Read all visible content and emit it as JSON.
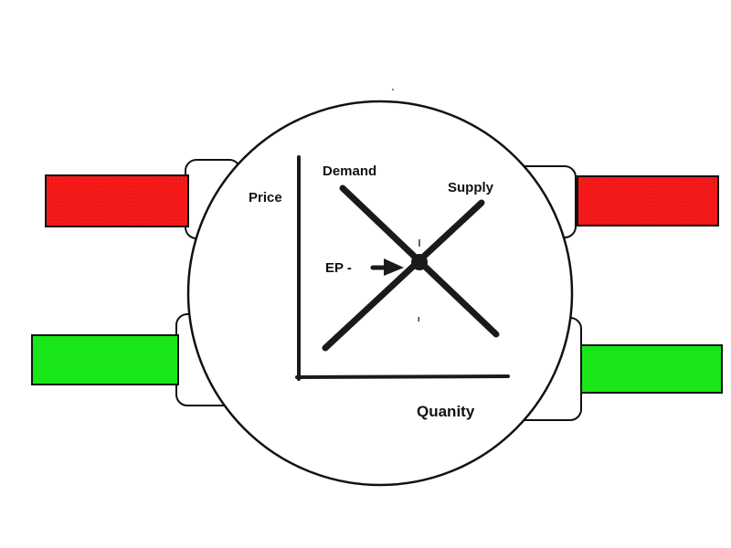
{
  "diagram": {
    "labels": {
      "price": "Price",
      "demand": "Demand",
      "supply": "Supply",
      "ep": "EP -",
      "quantity": "Quanity"
    },
    "colors": {
      "red_bar": "#ff1a1a",
      "green_bar": "#19e619",
      "outline": "#111111",
      "line": "#1a1a1a",
      "background": "#ffffff"
    }
  }
}
